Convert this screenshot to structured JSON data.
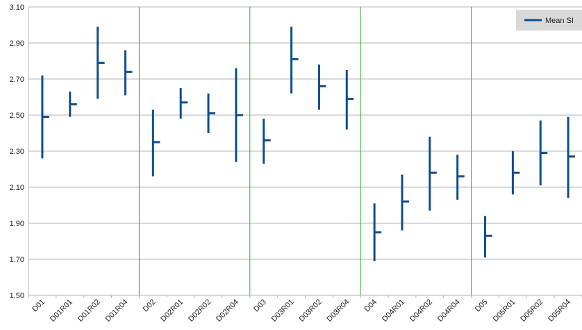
{
  "chart_data": {
    "type": "stock",
    "categories": [
      "D01",
      "D01R01",
      "D01R02",
      "D01R04",
      "D02",
      "D02R01",
      "D02R02",
      "D02R04",
      "D03",
      "D03R01",
      "D03R02",
      "D03R04",
      "D04",
      "D04R01",
      "D04R02",
      "D04R04",
      "D05",
      "D05R01",
      "D05R02",
      "D05R04"
    ],
    "series": [
      {
        "name": "Mean SI",
        "mean": [
          2.49,
          2.56,
          2.79,
          2.74,
          2.35,
          2.57,
          2.51,
          2.5,
          2.36,
          2.81,
          2.66,
          2.59,
          1.85,
          2.02,
          2.18,
          2.16,
          1.83,
          2.18,
          2.29,
          2.27
        ],
        "low": [
          2.26,
          2.49,
          2.59,
          2.61,
          2.16,
          2.48,
          2.4,
          2.24,
          2.23,
          2.62,
          2.53,
          2.42,
          1.69,
          1.86,
          1.97,
          2.03,
          1.71,
          2.06,
          2.11,
          2.04
        ],
        "high": [
          2.72,
          2.63,
          2.99,
          2.86,
          2.53,
          2.65,
          2.62,
          2.76,
          2.48,
          2.99,
          2.78,
          2.75,
          2.01,
          2.17,
          2.38,
          2.28,
          1.94,
          2.3,
          2.47,
          2.49
        ]
      }
    ],
    "ylim": [
      1.5,
      3.1
    ],
    "yticks": [
      "1.50",
      "1.70",
      "1.90",
      "2.10",
      "2.30",
      "2.50",
      "2.70",
      "2.90",
      "3.10"
    ],
    "group_separators_after": [
      4,
      8,
      12,
      16
    ],
    "grid": true,
    "legend_position": "top-right",
    "colors": {
      "series": "#0e4d8c",
      "grid": "#b3b3b3",
      "separator": "#33aa33",
      "legend_bg": "#d9d9d9"
    }
  }
}
